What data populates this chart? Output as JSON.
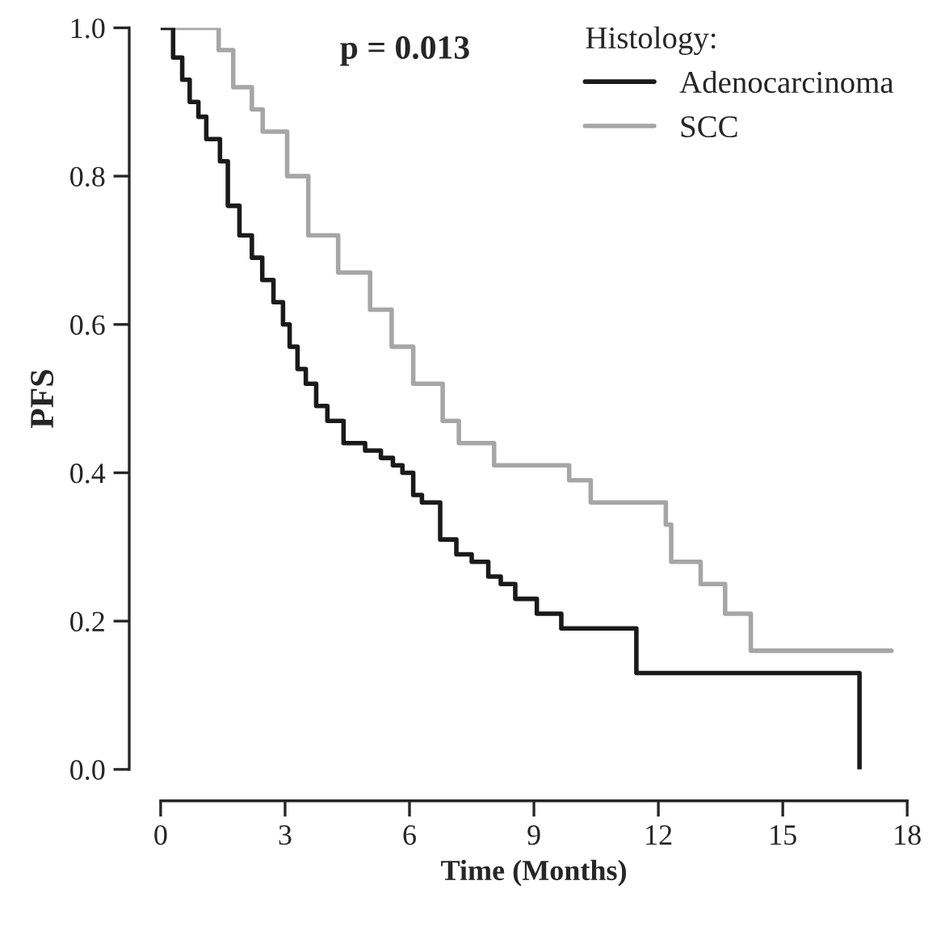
{
  "chart_data": {
    "type": "step",
    "xlabel": "Time (Months)",
    "ylabel": "PFS",
    "legend_title": "Histology:",
    "annotations": [
      "p = 0.013"
    ],
    "series": [
      {
        "name": "Adenocarcinoma",
        "color": "#1a1a1a",
        "x": [
          0,
          0.3,
          0.52,
          0.7,
          0.91,
          1.1,
          1.43,
          1.62,
          1.9,
          2.2,
          2.45,
          2.72,
          2.95,
          3.11,
          3.3,
          3.5,
          3.75,
          4.02,
          4.41,
          4.93,
          5.31,
          5.6,
          5.83,
          6.09,
          6.3,
          6.48,
          6.74,
          7.13,
          7.5,
          7.9,
          8.2,
          8.55,
          9.07,
          9.66,
          11.47,
          16.85
        ],
        "values": [
          1.0,
          0.96,
          0.93,
          0.9,
          0.88,
          0.85,
          0.82,
          0.76,
          0.72,
          0.69,
          0.66,
          0.63,
          0.6,
          0.57,
          0.54,
          0.52,
          0.49,
          0.47,
          0.44,
          0.43,
          0.42,
          0.41,
          0.4,
          0.37,
          0.36,
          0.36,
          0.31,
          0.29,
          0.28,
          0.26,
          0.25,
          0.23,
          0.21,
          0.19,
          0.13,
          0.0
        ]
      },
      {
        "name": "SCC",
        "color": "#a6a6a6",
        "x": [
          0,
          1.4,
          1.75,
          2.2,
          2.46,
          3.05,
          3.56,
          4.28,
          5.05,
          5.57,
          6.09,
          6.8,
          7.19,
          8.04,
          9.85,
          10.37,
          12.18,
          12.31,
          13.02,
          13.61,
          14.23,
          17.62
        ],
        "values": [
          1.0,
          0.97,
          0.92,
          0.89,
          0.86,
          0.8,
          0.72,
          0.67,
          0.62,
          0.57,
          0.52,
          0.47,
          0.44,
          0.41,
          0.39,
          0.36,
          0.33,
          0.28,
          0.25,
          0.21,
          0.16,
          0.16
        ]
      }
    ],
    "xlim": [
      0,
      18
    ],
    "xticks": [
      0,
      3,
      6,
      9,
      12,
      15,
      18
    ],
    "ylim": [
      0.0,
      1.0
    ],
    "yticks": [
      {
        "value": 0,
        "label": "0.0"
      },
      0.2,
      0.4,
      0.6,
      0.8,
      {
        "value": 1,
        "label": "1.0"
      }
    ],
    "legend": "top right",
    "grid": false,
    "line_style": "solid",
    "marker": "none"
  }
}
